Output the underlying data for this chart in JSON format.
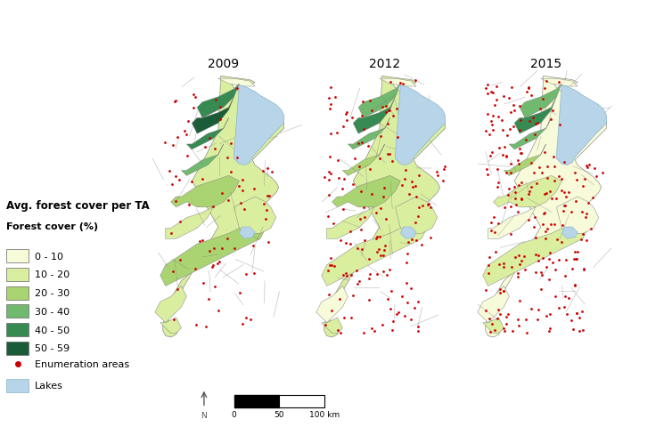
{
  "title_2009": "2009",
  "title_2012": "2012",
  "title_2015": "2015",
  "legend_title1": "Avg. forest cover per TA",
  "legend_title2": "Forest cover (%)",
  "legend_labels": [
    "0 - 10",
    "10 - 20",
    "20 - 30",
    "30 - 40",
    "40 - 50",
    "50 - 59"
  ],
  "legend_colors": [
    "#f7fbd9",
    "#daeea0",
    "#aad472",
    "#71b96f",
    "#368a52",
    "#1b5c38"
  ],
  "enum_label": "Enumeration areas",
  "enum_color": "#cc0000",
  "lake_label": "Lakes",
  "lake_color": "#b8d4e8",
  "bg_color": "#ffffff",
  "land_outline": "#777777",
  "title_fontsize": 10,
  "legend_fontsize": 8,
  "figure_width": 7.54,
  "figure_height": 4.81
}
